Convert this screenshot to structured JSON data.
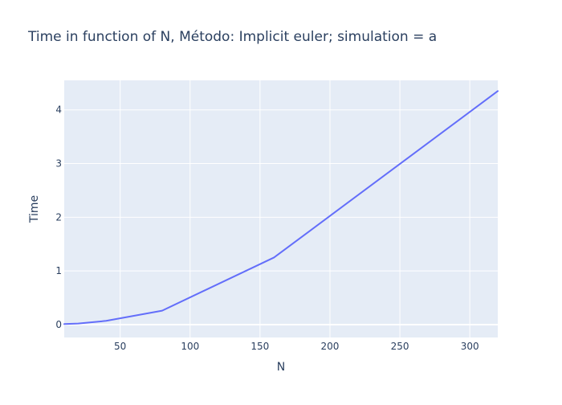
{
  "chart_data": {
    "type": "line",
    "title": "Time in function of N, Método: Implicit euler; simulation = a",
    "xlabel": "N",
    "ylabel": "Time",
    "xlim": [
      10,
      320
    ],
    "ylim": [
      -0.24,
      4.55
    ],
    "x_ticks": [
      50,
      100,
      150,
      200,
      250,
      300
    ],
    "y_ticks": [
      0,
      1,
      2,
      3,
      4
    ],
    "grid": true,
    "legend": "none",
    "series": [
      {
        "x": [
          10,
          20,
          40,
          80,
          160,
          320
        ],
        "y": [
          0.01,
          0.02,
          0.07,
          0.26,
          1.25,
          4.35
        ],
        "color": "#636efa"
      }
    ]
  },
  "colors": {
    "plot_background": "#e5ecf6",
    "grid": "#ffffff",
    "text": "#2a3f5f",
    "series": "#636efa"
  }
}
